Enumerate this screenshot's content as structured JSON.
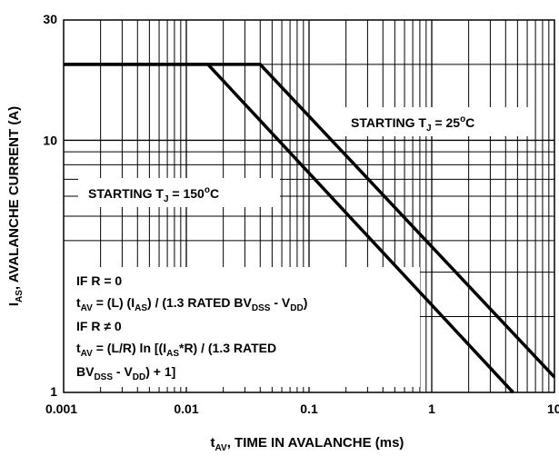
{
  "chart_data": {
    "type": "line",
    "xlabel": "tAV, TIME IN AVALANCHE (ms)",
    "xlabel_parts": {
      "main": "t",
      "sub": "AV",
      "rest": ", TIME IN AVALANCHE (ms)"
    },
    "ylabel": "IAS, AVALANCHE CURRENT (A)",
    "ylabel_parts": {
      "main": "I",
      "sub": "AS",
      "rest": ", AVALANCHE CURRENT (A)"
    },
    "xscale": "log",
    "yscale": "log",
    "xlim": [
      0.001,
      10
    ],
    "ylim": [
      1,
      30
    ],
    "grid": true,
    "x_tick_labels": [
      "0.001",
      "0.01",
      "0.1",
      "1",
      "10"
    ],
    "x_tick_values": [
      0.001,
      0.01,
      0.1,
      1,
      10
    ],
    "y_tick_labels": [
      "1",
      "10",
      "30"
    ],
    "y_tick_values": [
      1,
      10,
      30
    ],
    "series": [
      {
        "name": "STARTING TJ = 25°C",
        "x": [
          0.001,
          0.04,
          10
        ],
        "y": [
          20,
          20,
          1.15
        ]
      },
      {
        "name": "STARTING TJ = 150°C",
        "x": [
          0.001,
          0.015,
          4.6
        ],
        "y": [
          20,
          20,
          1
        ]
      }
    ],
    "annotations": {
      "tj25": {
        "prefix": "STARTING T",
        "sub": "J",
        "mid": " = 25",
        "sup": "o",
        "suffix": "C"
      },
      "tj150": {
        "prefix": "STARTING T",
        "sub": "J",
        "mid": " = 150",
        "sup": "o",
        "suffix": "C"
      },
      "formula": {
        "l1": "IF R = 0",
        "l2": {
          "a": "t",
          "as": "AV",
          "b": " = (L) (I",
          "bs": "AS",
          "c": ") / (1.3 RATED BV",
          "cs": "DSS",
          "d": " - V",
          "ds": "DD",
          "e": ")"
        },
        "l3": "IF R ≠ 0",
        "l4": {
          "a": "t",
          "as": "AV",
          "b": " = (L/R) ln [(I",
          "bs": "AS",
          "c": "*R) / (1.3 RATED"
        },
        "l5": {
          "a": "BV",
          "as": "DSS",
          "b": " - V",
          "bs": "DD",
          "c": ") + 1]"
        }
      }
    }
  }
}
